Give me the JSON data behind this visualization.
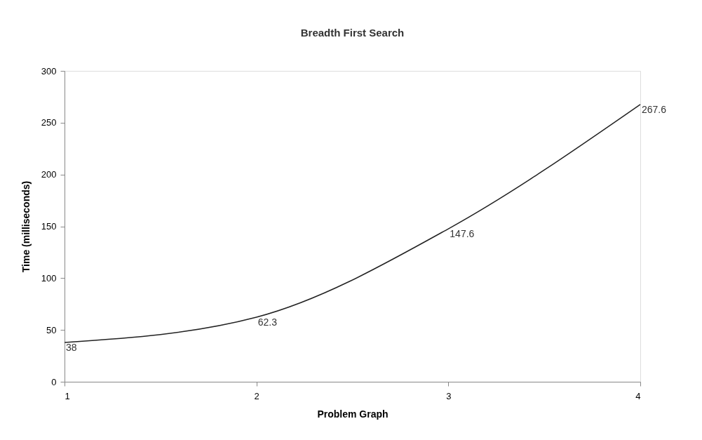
{
  "chart_data": {
    "type": "line",
    "title": "Breadth First Search",
    "xlabel": "Problem Graph",
    "ylabel": "Time (milliseconds)",
    "x": [
      1,
      2,
      3,
      4
    ],
    "series": [
      {
        "color": "#222222",
        "values": [
          38,
          62.3,
          147.6,
          267.6
        ]
      }
    ],
    "xlim": [
      1,
      4
    ],
    "xticks": [
      1,
      2,
      3,
      4
    ],
    "ylim": [
      0,
      300
    ],
    "yticks": [
      0,
      50,
      100,
      150,
      200,
      250,
      300
    ],
    "grid": false,
    "marker": "none",
    "line_style": "solid",
    "data_labels": true
  }
}
